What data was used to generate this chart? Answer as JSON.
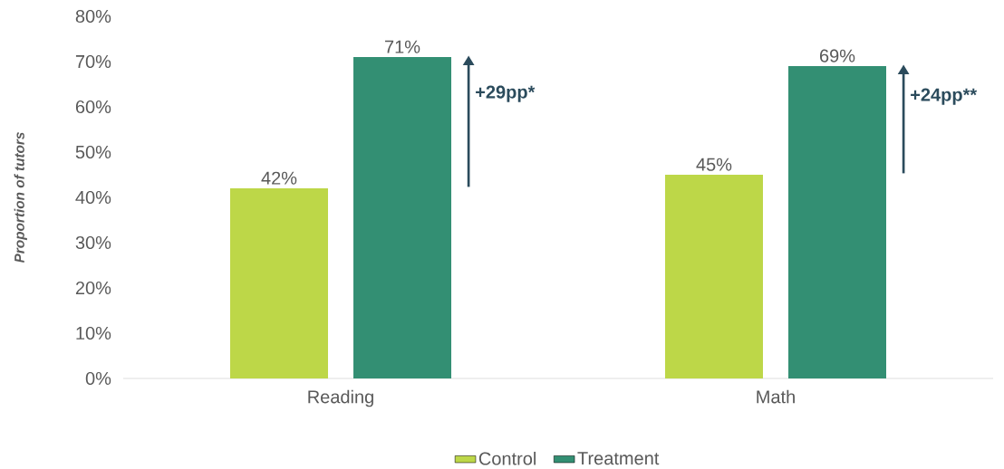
{
  "chart_data": {
    "type": "bar",
    "ylabel": "Proportion of tutors",
    "categories": [
      "Reading",
      "Math"
    ],
    "series": [
      {
        "name": "Control",
        "color": "#bdd748",
        "values": [
          42,
          45
        ],
        "value_labels": [
          "42%",
          "45%"
        ]
      },
      {
        "name": "Treatment",
        "color": "#338f73",
        "values": [
          71,
          69
        ],
        "value_labels": [
          "71%",
          "69%"
        ]
      }
    ],
    "ylim": [
      0,
      80
    ],
    "yticks": [
      {
        "value": 0,
        "label": "0%"
      },
      {
        "value": 10,
        "label": "10%"
      },
      {
        "value": 20,
        "label": "20%"
      },
      {
        "value": 30,
        "label": "30%"
      },
      {
        "value": 40,
        "label": "40%"
      },
      {
        "value": 50,
        "label": "50%"
      },
      {
        "value": 60,
        "label": "60%"
      },
      {
        "value": 70,
        "label": "70%"
      },
      {
        "value": 80,
        "label": "80%"
      }
    ],
    "legend": "bottom",
    "annotations": [
      "+29pp*",
      "+24pp**"
    ]
  }
}
